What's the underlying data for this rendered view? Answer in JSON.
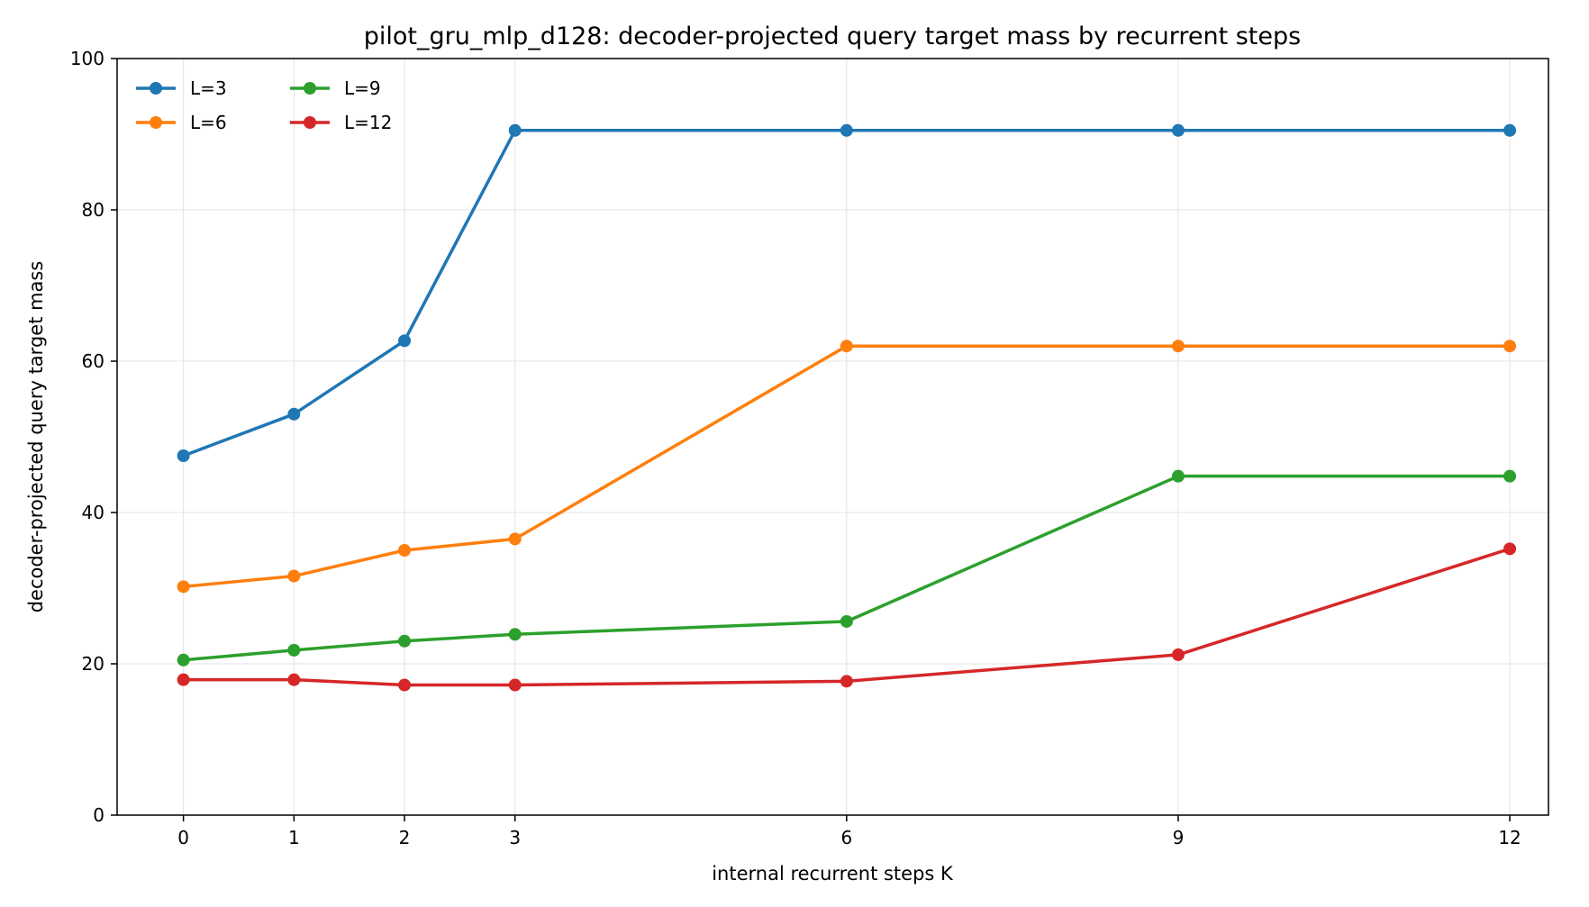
{
  "chart_data": {
    "type": "line",
    "title": "pilot_gru_mlp_d128: decoder-projected query target mass by recurrent steps",
    "xlabel": "internal recurrent steps K",
    "ylabel": "decoder-projected query target mass",
    "x": [
      0,
      1,
      2,
      3,
      6,
      9,
      12
    ],
    "xticks": [
      "0",
      "1",
      "2",
      "3",
      "6",
      "9",
      "12"
    ],
    "xlim": [
      -0.6,
      12.35
    ],
    "ylim": [
      0,
      100
    ],
    "yticks": [
      "0",
      "20",
      "40",
      "60",
      "80",
      "100"
    ],
    "grid": true,
    "legend_position": "upper-left",
    "series": [
      {
        "name": "L=3",
        "color": "#1f77b4",
        "values": [
          47.5,
          53.0,
          62.7,
          90.5,
          90.5,
          90.5,
          90.5
        ]
      },
      {
        "name": "L=6",
        "color": "#ff7f0e",
        "values": [
          30.2,
          31.6,
          35.0,
          36.5,
          62.0,
          62.0,
          62.0
        ]
      },
      {
        "name": "L=9",
        "color": "#2ca02c",
        "values": [
          20.5,
          21.8,
          23.0,
          23.9,
          25.6,
          44.8,
          44.8
        ]
      },
      {
        "name": "L=12",
        "color": "#d62728",
        "values": [
          17.9,
          17.9,
          17.2,
          17.2,
          17.7,
          21.2,
          35.2
        ]
      }
    ]
  }
}
